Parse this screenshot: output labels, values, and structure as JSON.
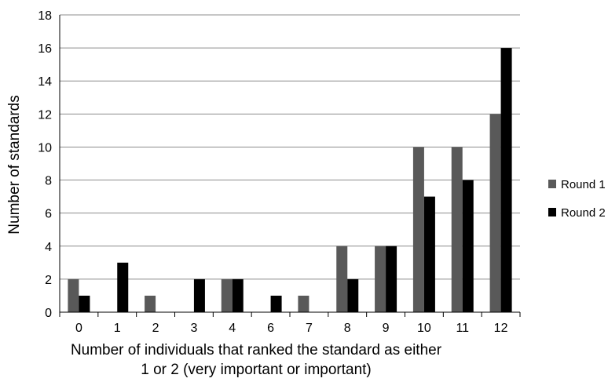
{
  "chart_data": {
    "type": "bar",
    "title": "",
    "xlabel_lines": [
      "Number of individuals that ranked the standard as either",
      "1 or 2 (very important or important)"
    ],
    "ylabel": "Number of standards",
    "categories": [
      "0",
      "1",
      "2",
      "3",
      "4",
      "6",
      "7",
      "8",
      "9",
      "10",
      "11",
      "12"
    ],
    "series": [
      {
        "name": "Round 1",
        "color": "#595959",
        "values": [
          2,
          0,
          1,
          0,
          2,
          0,
          1,
          4,
          4,
          10,
          10,
          12
        ]
      },
      {
        "name": "Round 2",
        "color": "#000000",
        "values": [
          1,
          3,
          0,
          2,
          2,
          1,
          0,
          2,
          4,
          7,
          8,
          16
        ]
      }
    ],
    "ylim": [
      0,
      18
    ],
    "yticks": [
      0,
      2,
      4,
      6,
      8,
      10,
      12,
      14,
      16,
      18
    ],
    "grid": "horizontal",
    "legend_position": "right"
  }
}
